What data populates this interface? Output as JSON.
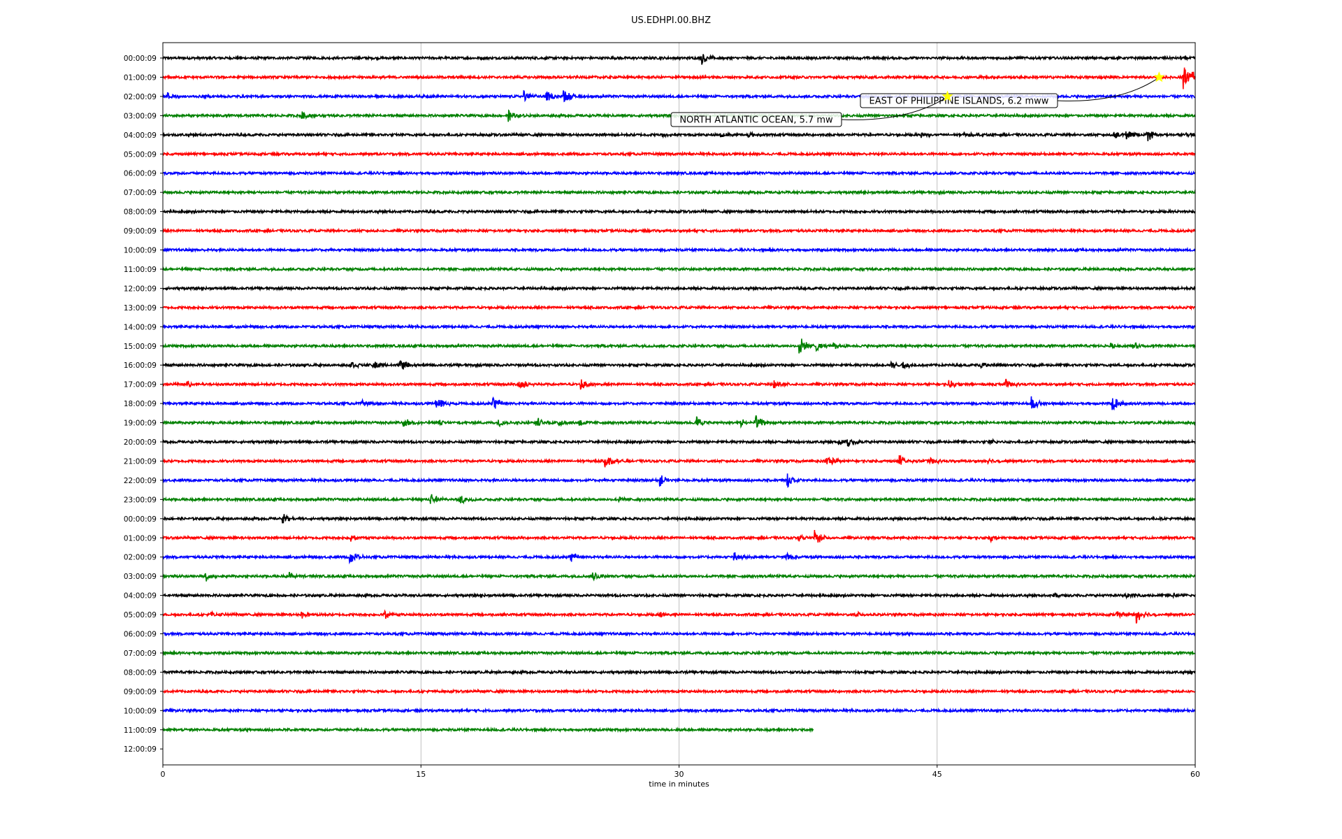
{
  "chart_data": {
    "type": "line",
    "title": "US.EDHPI.00.BHZ",
    "xlabel": "time in minutes",
    "ylabel": "",
    "xlim": [
      0,
      60
    ],
    "x_ticks": [
      0,
      15,
      30,
      45,
      60
    ],
    "grid_x": true,
    "colors": [
      "#000000",
      "#ff0000",
      "#0000ff",
      "#008000"
    ],
    "row_labels": [
      "00:00:09",
      "01:00:09",
      "02:00:09",
      "03:00:09",
      "04:00:09",
      "05:00:09",
      "06:00:09",
      "07:00:09",
      "08:00:09",
      "09:00:09",
      "10:00:09",
      "11:00:09",
      "12:00:09",
      "13:00:09",
      "14:00:09",
      "15:00:09",
      "16:00:09",
      "17:00:09",
      "18:00:09",
      "19:00:09",
      "20:00:09",
      "21:00:09",
      "22:00:09",
      "23:00:09",
      "00:00:09",
      "01:00:09",
      "02:00:09",
      "03:00:09",
      "04:00:09",
      "05:00:09",
      "06:00:09",
      "07:00:09",
      "08:00:09",
      "09:00:09",
      "10:00:09",
      "11:00:09",
      "12:00:09"
    ],
    "last_trace_end_minute": 37.8,
    "noise_level": 0.18,
    "events": [
      {
        "row": 0,
        "minutes": [
          31.3
        ],
        "amplitudes": [
          1.2
        ]
      },
      {
        "row": 1,
        "minutes": [
          59.3,
          59.8
        ],
        "amplitudes": [
          2.0,
          1.0
        ]
      },
      {
        "row": 2,
        "minutes": [
          0.3,
          21.0,
          22.3,
          23.3
        ],
        "amplitudes": [
          0.6,
          0.9,
          0.8,
          1.2
        ]
      },
      {
        "row": 3,
        "minutes": [
          8.1,
          20.1
        ],
        "amplitudes": [
          0.7,
          0.9
        ]
      },
      {
        "row": 4,
        "minutes": [
          29.0,
          32.4,
          34.0,
          44.0,
          46.6,
          55.3,
          56.0,
          57.2,
          59.5
        ],
        "amplitudes": [
          0.4,
          0.5,
          0.4,
          0.5,
          0.4,
          0.7,
          0.7,
          1.0,
          0.5
        ]
      },
      {
        "row": 15,
        "minutes": [
          37.0,
          38.0,
          39.0,
          55.0,
          56.4
        ],
        "amplitudes": [
          1.6,
          0.8,
          0.5,
          0.5,
          0.6
        ]
      },
      {
        "row": 16,
        "minutes": [
          11.0,
          12.2,
          13.8,
          42.3,
          43.0,
          47.5
        ],
        "amplitudes": [
          0.6,
          0.8,
          1.0,
          0.6,
          0.6,
          0.5
        ]
      },
      {
        "row": 17,
        "minutes": [
          1.4,
          20.7,
          24.3,
          35.5,
          45.7,
          49.0
        ],
        "amplitudes": [
          0.5,
          1.0,
          1.0,
          0.9,
          0.7,
          0.7
        ]
      },
      {
        "row": 18,
        "minutes": [
          11.6,
          15.9,
          19.2,
          50.5,
          55.2
        ],
        "amplitudes": [
          0.4,
          1.2,
          1.1,
          1.1,
          1.3
        ]
      },
      {
        "row": 19,
        "minutes": [
          14.0,
          16.0,
          19.5,
          21.7,
          23.0,
          24.2,
          31.0,
          33.6,
          34.4
        ],
        "amplitudes": [
          0.7,
          0.5,
          0.6,
          0.9,
          0.6,
          0.6,
          1.1,
          0.8,
          1.3
        ]
      },
      {
        "row": 20,
        "minutes": [
          39.3,
          39.8,
          48.0
        ],
        "amplitudes": [
          0.6,
          0.8,
          0.4
        ]
      },
      {
        "row": 21,
        "minutes": [
          25.7,
          38.6,
          42.8,
          44.6,
          47.8
        ],
        "amplitudes": [
          1.0,
          1.2,
          1.2,
          0.6,
          0.6
        ]
      },
      {
        "row": 22,
        "minutes": [
          28.9,
          36.3
        ],
        "amplitudes": [
          0.9,
          1.1
        ]
      },
      {
        "row": 23,
        "minutes": [
          15.6,
          17.3,
          26.5
        ],
        "amplitudes": [
          1.0,
          0.8,
          0.4
        ]
      },
      {
        "row": 24,
        "minutes": [
          7.0
        ],
        "amplitudes": [
          0.7
        ]
      },
      {
        "row": 25,
        "minutes": [
          10.9,
          36.9,
          37.9,
          48.1
        ],
        "amplitudes": [
          0.5,
          0.5,
          1.2,
          0.6
        ]
      },
      {
        "row": 26,
        "minutes": [
          10.9,
          23.7,
          33.2,
          36.2
        ],
        "amplitudes": [
          1.1,
          0.8,
          0.9,
          1.0
        ]
      },
      {
        "row": 27,
        "minutes": [
          2.5,
          7.4,
          25.0
        ],
        "amplitudes": [
          0.7,
          0.6,
          0.7
        ]
      },
      {
        "row": 28,
        "minutes": [
          51.8,
          56.0,
          58.7
        ],
        "amplitudes": [
          0.4,
          0.5,
          0.4
        ]
      },
      {
        "row": 29,
        "minutes": [
          2.8,
          8.1,
          12.9,
          28.9,
          40.3,
          55.4,
          56.6
        ],
        "amplitudes": [
          0.5,
          0.5,
          0.6,
          0.5,
          0.4,
          0.6,
          1.4
        ]
      }
    ],
    "annotations": [
      {
        "text": "EAST OF PHILIPPINE ISLANDS, 6.2 mww",
        "row": 1,
        "minute": 57.9,
        "marker": "star",
        "marker_color": "#ffff00"
      },
      {
        "text": "NORTH ATLANTIC OCEAN, 5.7 mw",
        "row": 2,
        "minute": 45.6,
        "marker": "star",
        "marker_color": "#ffff00"
      }
    ]
  }
}
